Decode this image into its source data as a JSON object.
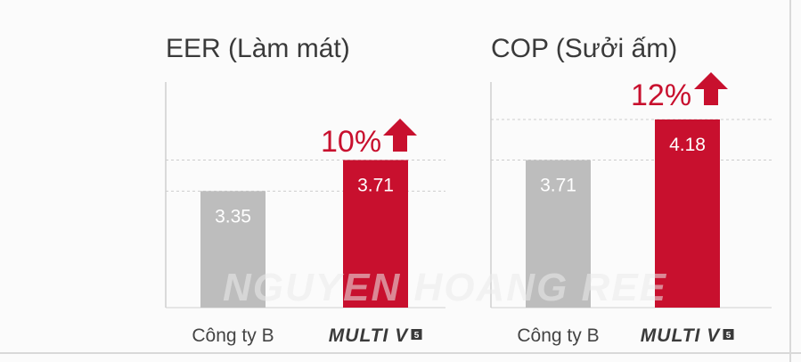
{
  "chart_data": [
    {
      "type": "bar",
      "title": "EER (Làm mát)",
      "categories": [
        "Công ty B",
        "MULTI V"
      ],
      "values": [
        3.35,
        3.71
      ],
      "data_labels": [
        "3.35",
        "3.71"
      ],
      "increase_label": "10%",
      "grid": true,
      "ylim": [
        2.0,
        4.4
      ]
    },
    {
      "type": "bar",
      "title": "COP (Sưởi ấm)",
      "categories": [
        "Công ty B",
        "MULTI V"
      ],
      "values": [
        3.71,
        4.18
      ],
      "data_labels": [
        "3.71",
        "4.18"
      ],
      "increase_label": "12%",
      "grid": true,
      "ylim": [
        2.0,
        4.4
      ]
    }
  ],
  "brand_badge": "5",
  "watermark": "NGUYEN HOANG REE",
  "colors": {
    "competitor_bar": "#bdbdbd",
    "brand_bar": "#c8102e",
    "accent": "#c8102e",
    "gridline": "#cccccc",
    "axis": "#d0d0d0"
  }
}
